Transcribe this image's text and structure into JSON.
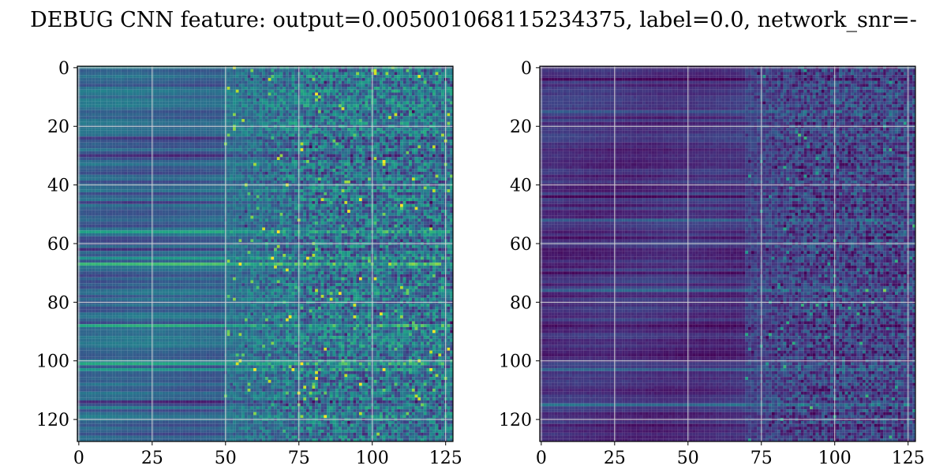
{
  "figure": {
    "title": "DEBUG CNN feature: output=0.005001068115234375, label=0.0, network_snr=-"
  },
  "chart_data": [
    {
      "type": "heatmap",
      "title": "",
      "xlabel": "",
      "ylabel": "",
      "colormap": "viridis",
      "grid": true,
      "rows": 128,
      "cols": 128,
      "xlim": [
        -0.5,
        127.5
      ],
      "ylim": [
        127.5,
        -0.5
      ],
      "xticks": [
        0,
        25,
        50,
        75,
        100,
        125
      ],
      "yticks": [
        0,
        20,
        40,
        60,
        80,
        100,
        120
      ],
      "value_range": [
        0,
        1
      ],
      "column_profile": {
        "smooth_cols": [
          0,
          50
        ],
        "noisy_cols": [
          50,
          128
        ],
        "smooth_level": 0.32,
        "noisy_level": 0.38
      },
      "bright_rows": [
        56,
        65,
        67,
        88,
        101,
        103
      ],
      "dark_rows": [
        24,
        30,
        46,
        62,
        82,
        110,
        114
      ]
    },
    {
      "type": "heatmap",
      "title": "",
      "xlabel": "",
      "ylabel": "",
      "colormap": "viridis",
      "grid": true,
      "rows": 128,
      "cols": 128,
      "xlim": [
        -0.5,
        127.5
      ],
      "ylim": [
        127.5,
        -0.5
      ],
      "xticks": [
        0,
        25,
        50,
        75,
        100,
        125
      ],
      "yticks": [
        0,
        20,
        40,
        60,
        80,
        100,
        120
      ],
      "value_range": [
        0,
        1
      ],
      "column_profile": {
        "smooth_cols": [
          0,
          70
        ],
        "noisy_cols": [
          70,
          128
        ],
        "smooth_level": 0.14,
        "noisy_level": 0.2
      },
      "bright_rows": [
        15,
        52,
        76,
        103,
        115
      ],
      "dark_rows": [
        4,
        28,
        44,
        58,
        70,
        88,
        98,
        110,
        122
      ]
    }
  ]
}
